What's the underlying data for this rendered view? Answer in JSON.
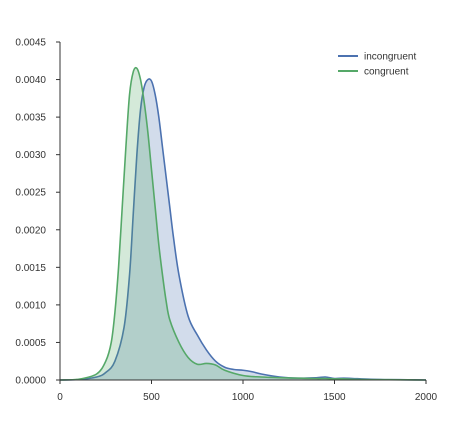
{
  "chart_data": {
    "type": "area",
    "title": "",
    "xlabel": "",
    "ylabel": "",
    "xlim": [
      0,
      2000
    ],
    "ylim": [
      0,
      0.0045
    ],
    "x_ticks": [
      0,
      500,
      1000,
      1500,
      2000
    ],
    "x_tick_labels": [
      "0",
      "500",
      "1000",
      "1500",
      "2000"
    ],
    "y_ticks": [
      0,
      0.0005,
      0.001,
      0.0015,
      0.002,
      0.0025,
      0.003,
      0.0035,
      0.004,
      0.0045
    ],
    "y_tick_labels": [
      "0.0000",
      "0.0005",
      "0.0010",
      "0.0015",
      "0.0020",
      "0.0025",
      "0.0030",
      "0.0035",
      "0.0040",
      "0.0045"
    ],
    "grid": false,
    "legend_position": "top-right",
    "series": [
      {
        "name": "incongruent",
        "color": "#4c72b0",
        "fill": "rgba(76,114,176,0.25)",
        "x": [
          0,
          100,
          200,
          250,
          300,
          350,
          380,
          400,
          420,
          440,
          460,
          480,
          500,
          520,
          540,
          560,
          580,
          600,
          620,
          650,
          700,
          750,
          800,
          850,
          900,
          950,
          1000,
          1050,
          1100,
          1200,
          1300,
          1400,
          1450,
          1500,
          1550,
          1600,
          1700,
          1800,
          1900,
          2000
        ],
        "y": [
          0,
          5e-06,
          4e-05,
          0.0001,
          0.00025,
          0.0007,
          0.0014,
          0.0022,
          0.003,
          0.0036,
          0.0039,
          0.004,
          0.00398,
          0.0038,
          0.0035,
          0.0031,
          0.0027,
          0.0023,
          0.0019,
          0.0014,
          0.00085,
          0.0006,
          0.0004,
          0.00025,
          0.00017,
          0.00014,
          0.00013,
          0.00011,
          8e-05,
          4e-05,
          2.5e-05,
          3e-05,
          4e-05,
          2e-05,
          2.5e-05,
          2e-05,
          1e-05,
          5e-06,
          3e-06,
          0
        ]
      },
      {
        "name": "congruent",
        "color": "#55a868",
        "fill": "rgba(85,168,104,0.25)",
        "x": [
          0,
          100,
          200,
          250,
          280,
          300,
          320,
          340,
          360,
          380,
          400,
          420,
          440,
          460,
          480,
          500,
          520,
          540,
          560,
          580,
          600,
          650,
          700,
          750,
          800,
          850,
          900,
          1000,
          1100,
          1200,
          1300,
          1400,
          1450,
          1500,
          1550,
          1600,
          1700,
          1800,
          1900,
          2000
        ],
        "y": [
          0,
          1e-05,
          8e-05,
          0.00025,
          0.0005,
          0.0009,
          0.0015,
          0.0023,
          0.0031,
          0.0038,
          0.0041,
          0.00415,
          0.004,
          0.0037,
          0.0033,
          0.0028,
          0.0023,
          0.0018,
          0.0014,
          0.00105,
          0.0008,
          0.0005,
          0.0003,
          0.00021,
          0.00022,
          0.0002,
          0.00013,
          6e-05,
          4e-05,
          3e-05,
          2.5e-05,
          2e-05,
          2e-05,
          1.5e-05,
          1.5e-05,
          1e-05,
          5e-06,
          4e-06,
          2e-06,
          0
        ]
      }
    ]
  }
}
